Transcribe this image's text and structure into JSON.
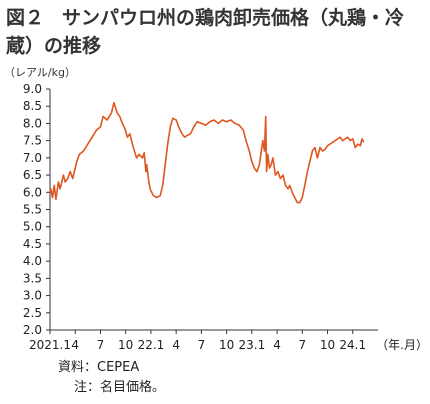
{
  "title": {
    "figure_number": "図２",
    "text": "サンパウロ州の鶏肉卸売価格（丸鶏・冷蔵）の推移"
  },
  "chart_data": {
    "type": "line",
    "ylabel": "（レアル/kg）",
    "xlabel": "（年.月）",
    "ylim": [
      2.0,
      9.0
    ],
    "xlim": [
      0,
      39
    ],
    "yticks": [
      "2.0",
      "2.5",
      "3.0",
      "3.5",
      "4.0",
      "4.5",
      "5.0",
      "5.5",
      "6.0",
      "6.5",
      "7.0",
      "7.5",
      "8.0",
      "8.5",
      "9.0"
    ],
    "xticks": [
      {
        "x": 0,
        "label": "2021.1"
      },
      {
        "x": 3,
        "label": "4"
      },
      {
        "x": 6,
        "label": "7"
      },
      {
        "x": 9,
        "label": "10"
      },
      {
        "x": 12,
        "label": "22.1"
      },
      {
        "x": 15,
        "label": "4"
      },
      {
        "x": 18,
        "label": "7"
      },
      {
        "x": 21,
        "label": "10"
      },
      {
        "x": 24,
        "label": "23.1"
      },
      {
        "x": 27,
        "label": "4"
      },
      {
        "x": 30,
        "label": "7"
      },
      {
        "x": 33,
        "label": "10"
      },
      {
        "x": 36,
        "label": "24.1"
      }
    ],
    "series": [
      {
        "color": "#e0561e",
        "x": [
          0,
          0.1,
          0.3,
          0.5,
          0.7,
          1.0,
          1.2,
          1.6,
          1.8,
          2.1,
          2.4,
          2.7,
          3.0,
          3.2,
          3.5,
          4.0,
          4.5,
          5.0,
          5.5,
          6.0,
          6.3,
          6.8,
          7.3,
          7.6,
          7.8,
          8.0,
          8.3,
          8.6,
          8.9,
          9.2,
          9.5,
          9.8,
          10.1,
          10.3,
          10.6,
          11.0,
          11.2,
          11.4,
          11.5,
          11.7,
          11.9,
          12.3,
          12.7,
          13.1,
          13.4,
          13.7,
          14.0,
          14.3,
          14.6,
          15.0,
          15.3,
          15.7,
          16.0,
          16.3,
          16.7,
          17.1,
          17.5,
          18.0,
          18.5,
          19.0,
          19.5,
          20.0,
          20.5,
          21.0,
          21.5,
          22.0,
          22.5,
          23.0,
          23.3,
          23.7,
          24.0,
          24.3,
          24.6,
          24.9,
          25.3,
          25.5,
          25.65,
          25.75,
          25.9,
          26.1,
          26.3,
          26.5,
          26.8,
          27.1,
          27.4,
          27.7,
          28.0,
          28.3,
          28.5,
          28.8,
          29.1,
          29.4,
          29.7,
          30.0,
          30.3,
          30.6,
          30.9,
          31.2,
          31.5,
          31.8,
          32.1,
          32.4,
          32.7,
          33.0,
          33.3,
          33.6,
          33.9,
          34.2,
          34.5,
          34.8,
          35.1,
          35.4,
          35.7,
          36.0,
          36.3,
          36.6,
          36.9,
          37.1,
          37.3
        ],
        "y": [
          6.0,
          6.1,
          5.85,
          6.2,
          5.8,
          6.3,
          6.1,
          6.5,
          6.3,
          6.4,
          6.6,
          6.4,
          6.7,
          6.9,
          7.1,
          7.2,
          7.4,
          7.6,
          7.8,
          7.9,
          8.2,
          8.1,
          8.3,
          8.6,
          8.45,
          8.3,
          8.2,
          8.0,
          7.85,
          7.6,
          7.7,
          7.4,
          7.15,
          7.0,
          7.1,
          7.0,
          7.15,
          6.6,
          6.8,
          6.4,
          6.1,
          5.9,
          5.85,
          5.9,
          6.2,
          6.8,
          7.4,
          7.9,
          8.15,
          8.1,
          7.9,
          7.7,
          7.6,
          7.65,
          7.7,
          7.9,
          8.05,
          8.0,
          7.95,
          8.05,
          8.1,
          8.0,
          8.1,
          8.05,
          8.1,
          8.0,
          7.95,
          7.8,
          7.5,
          7.2,
          6.9,
          6.7,
          6.6,
          6.8,
          7.5,
          7.2,
          8.2,
          6.6,
          7.1,
          6.7,
          6.8,
          7.0,
          6.5,
          6.6,
          6.4,
          6.5,
          6.2,
          6.1,
          6.2,
          6.0,
          5.85,
          5.7,
          5.7,
          5.85,
          6.2,
          6.6,
          6.9,
          7.2,
          7.3,
          7.0,
          7.3,
          7.2,
          7.25,
          7.35,
          7.4,
          7.45,
          7.5,
          7.55,
          7.6,
          7.5,
          7.55,
          7.6,
          7.5,
          7.55,
          7.3,
          7.4,
          7.35,
          7.55,
          7.45
        ]
      }
    ],
    "grid": false,
    "legend": "none"
  },
  "footnotes": {
    "source": "資料：CEPEA",
    "note": "注：名目価格。"
  }
}
